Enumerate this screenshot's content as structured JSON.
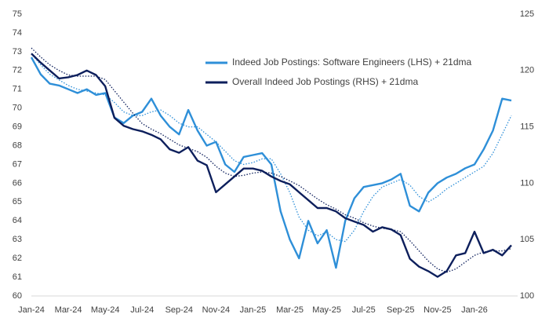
{
  "chart_data": {
    "type": "line",
    "categories": [
      "Jan-24",
      null,
      null,
      null,
      "Mar-24",
      null,
      null,
      null,
      "May-24",
      null,
      null,
      null,
      "Jul-24",
      null,
      null,
      null,
      "Sep-24",
      null,
      null,
      null,
      "Nov-24",
      null,
      null,
      null,
      "Jan-25",
      null,
      null,
      null,
      "Mar-25",
      null,
      null,
      null,
      "May-25",
      null,
      null,
      null,
      "Jul-25",
      null,
      null,
      null,
      "Sep-25",
      null,
      null,
      null,
      "Nov-25",
      null,
      null,
      null,
      "Jan-26",
      null,
      null,
      null,
      null
    ],
    "ylim": [
      60,
      75
    ],
    "yticks": [
      60,
      61,
      62,
      63,
      64,
      65,
      66,
      67,
      68,
      69,
      70,
      71,
      72,
      73,
      74,
      75
    ],
    "y2lim": [
      100,
      125
    ],
    "y2ticks": [
      100,
      105,
      110,
      115,
      120,
      125
    ],
    "legend": "top-center",
    "series": [
      {
        "name": "Indeed Job Postings: Software Engineers (LHS) + 21dma",
        "color": "#2e8fd8",
        "style": "solid",
        "values": [
          72.7,
          71.8,
          71.3,
          71.2,
          71.0,
          70.8,
          71.0,
          70.7,
          70.8,
          69.5,
          69.2,
          69.6,
          69.8,
          70.5,
          69.6,
          69.0,
          68.6,
          69.9,
          68.8,
          68.0,
          68.2,
          67.0,
          66.6,
          67.4,
          67.5,
          67.6,
          67.0,
          64.5,
          63.0,
          62.0,
          64.0,
          62.8,
          63.5,
          61.5,
          64.0,
          65.2,
          65.8,
          65.9,
          66.0,
          66.2,
          66.5,
          64.8,
          64.5,
          65.5,
          66.0,
          66.3,
          66.5,
          66.8,
          67.0,
          67.8,
          68.8,
          70.5,
          70.4
        ]
      },
      {
        "color": "#2e8fd8",
        "style": "dotted",
        "values": [
          72.9,
          72.3,
          71.8,
          71.5,
          71.2,
          71.0,
          70.9,
          70.8,
          70.7,
          70.3,
          69.8,
          69.6,
          69.6,
          69.8,
          69.9,
          69.6,
          69.2,
          69.0,
          69.0,
          68.6,
          68.2,
          67.7,
          67.2,
          67.0,
          67.1,
          67.3,
          67.3,
          66.5,
          65.5,
          64.2,
          63.5,
          63.2,
          63.4,
          63.0,
          62.9,
          63.5,
          64.5,
          65.3,
          65.8,
          66.0,
          66.2,
          65.9,
          65.3,
          65.0,
          65.3,
          65.7,
          66.0,
          66.3,
          66.6,
          66.9,
          67.6,
          68.6,
          69.6
        ]
      },
      {
        "name": "Overall Indeed Job Postings (RHS) + 21dma",
        "color": "#0d1f5c",
        "style": "solid",
        "axis": "y2",
        "values": [
          121.5,
          120.7,
          120.0,
          119.3,
          119.4,
          119.6,
          120.0,
          119.6,
          118.6,
          115.8,
          115.1,
          114.8,
          114.6,
          114.3,
          113.9,
          113.0,
          112.7,
          113.2,
          112.0,
          111.6,
          109.2,
          109.9,
          110.6,
          111.3,
          111.3,
          111.1,
          110.6,
          110.2,
          109.9,
          109.2,
          108.5,
          107.8,
          107.8,
          107.5,
          106.9,
          106.6,
          106.3,
          105.7,
          106.1,
          105.9,
          105.4,
          103.3,
          102.6,
          102.2,
          101.7,
          102.2,
          103.6,
          103.8,
          105.7,
          103.8,
          104.1,
          103.6,
          104.5
        ]
      },
      {
        "color": "#0d1f5c",
        "style": "dotted",
        "axis": "y2",
        "values": [
          122.0,
          121.2,
          120.5,
          120.0,
          119.6,
          119.5,
          119.5,
          119.5,
          119.2,
          118.2,
          117.2,
          116.2,
          115.3,
          114.8,
          114.4,
          113.9,
          113.4,
          113.1,
          112.8,
          112.3,
          111.5,
          110.9,
          110.6,
          110.7,
          110.9,
          111.0,
          110.9,
          110.6,
          110.2,
          109.8,
          109.2,
          108.6,
          108.1,
          107.7,
          107.2,
          106.9,
          106.5,
          106.2,
          106.0,
          105.9,
          105.7,
          104.9,
          104.0,
          103.1,
          102.4,
          102.1,
          102.4,
          103.0,
          103.6,
          103.9,
          104.0,
          104.0,
          104.2
        ]
      }
    ]
  }
}
